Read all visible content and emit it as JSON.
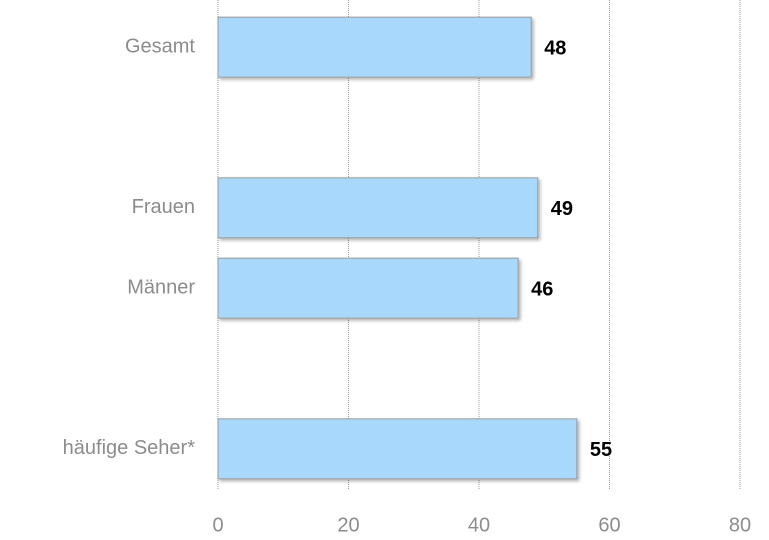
{
  "chart_data": {
    "type": "bar",
    "orientation": "horizontal",
    "categories": [
      "Gesamt",
      null,
      "Frauen",
      "Männer",
      null,
      "häufige Seher*"
    ],
    "values": [
      48,
      null,
      49,
      46,
      null,
      55
    ],
    "color": "#a8d8fc",
    "xlim": [
      0,
      80
    ],
    "xticks": [
      0,
      20,
      40,
      60,
      80
    ],
    "grid": true
  }
}
